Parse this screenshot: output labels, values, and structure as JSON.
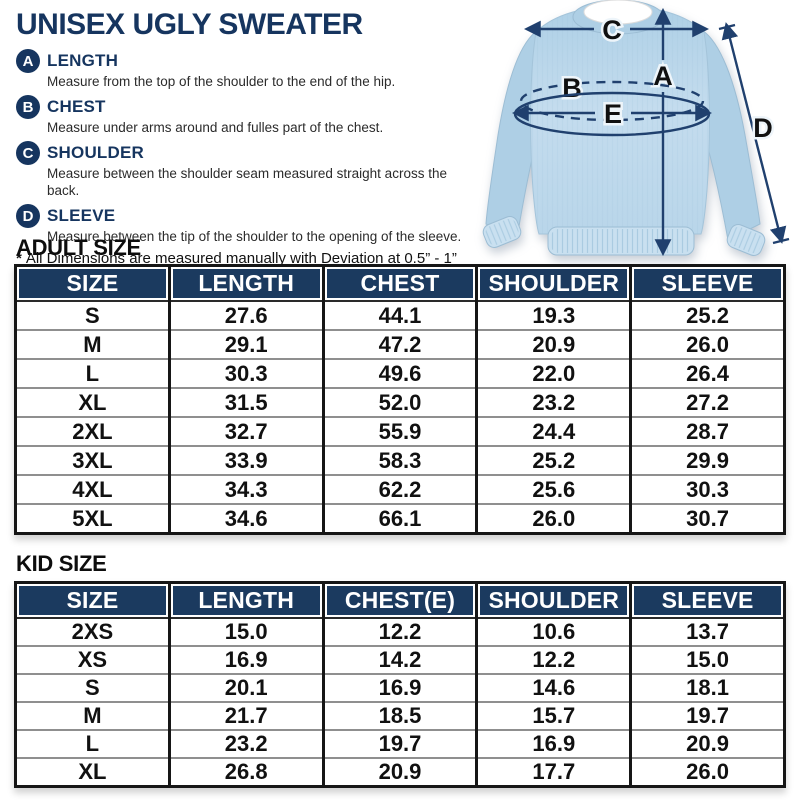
{
  "page": {
    "title": "UNISEX UGLY SWEATER",
    "note_star": "*",
    "note": "All Dimensions are measured manually with Deviation at 0.5” - 1”"
  },
  "measurements": [
    {
      "letter": "A",
      "label": "LENGTH",
      "description": "Measure from the top of the shoulder to the end of the hip."
    },
    {
      "letter": "B",
      "label": "CHEST",
      "description": "Measure under arms around and fulles part of the chest."
    },
    {
      "letter": "C",
      "label": "SHOULDER",
      "description": "Measure between the shoulder seam measured straight across the back."
    },
    {
      "letter": "D",
      "label": "SLEEVE",
      "description": "Measure between the tip of the shoulder to the opening of the sleeve."
    }
  ],
  "diagram": {
    "labels": {
      "a": "A",
      "b": "B",
      "c": "C",
      "d": "D",
      "e": "E"
    }
  },
  "adult": {
    "heading": "ADULT SIZE",
    "columns": [
      "SIZE",
      "LENGTH",
      "CHEST",
      "SHOULDER",
      "SLEEVE"
    ],
    "rows": [
      [
        "S",
        "27.6",
        "44.1",
        "19.3",
        "25.2"
      ],
      [
        "M",
        "29.1",
        "47.2",
        "20.9",
        "26.0"
      ],
      [
        "L",
        "30.3",
        "49.6",
        "22.0",
        "26.4"
      ],
      [
        "XL",
        "31.5",
        "52.0",
        "23.2",
        "27.2"
      ],
      [
        "2XL",
        "32.7",
        "55.9",
        "24.4",
        "28.7"
      ],
      [
        "3XL",
        "33.9",
        "58.3",
        "25.2",
        "29.9"
      ],
      [
        "4XL",
        "34.3",
        "62.2",
        "25.6",
        "30.3"
      ],
      [
        "5XL",
        "34.6",
        "66.1",
        "26.0",
        "30.7"
      ]
    ]
  },
  "kid": {
    "heading": "KID SIZE",
    "columns": [
      "SIZE",
      "LENGTH",
      "CHEST(E)",
      "SHOULDER",
      "SLEEVE"
    ],
    "rows": [
      [
        "2XS",
        "15.0",
        "12.2",
        "10.6",
        "13.7"
      ],
      [
        "XS",
        "16.9",
        "14.2",
        "12.2",
        "15.0"
      ],
      [
        "S",
        "20.1",
        "16.9",
        "14.6",
        "18.1"
      ],
      [
        "M",
        "21.7",
        "18.5",
        "15.7",
        "19.7"
      ],
      [
        "L",
        "23.2",
        "19.7",
        "16.9",
        "20.9"
      ],
      [
        "XL",
        "26.8",
        "20.9",
        "17.7",
        "26.0"
      ]
    ]
  },
  "colors": {
    "navy": "#16355f",
    "table_header": "#1b3a5f",
    "arrow": "#20406e",
    "sweater": "#b9d6ea"
  }
}
